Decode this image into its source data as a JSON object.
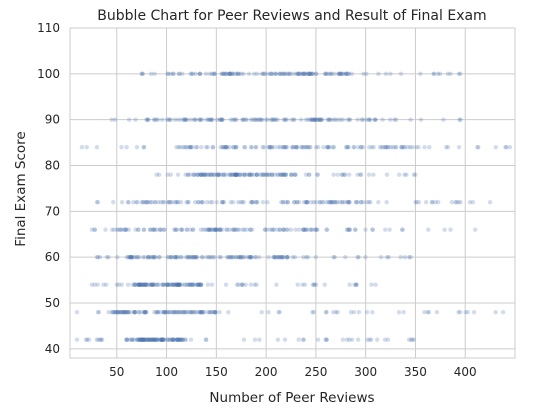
{
  "chart_data": {
    "type": "scatter",
    "title": "Bubble Chart for Peer Reviews and Result of Final Exam",
    "xlabel": "Number of Peer Reviews",
    "ylabel": "Final Exam Score",
    "xlim": [
      3,
      450
    ],
    "ylim": [
      38,
      110
    ],
    "xticks": [
      "50",
      "100",
      "150",
      "200",
      "250",
      "300",
      "350",
      "400"
    ],
    "xtick_values": [
      50,
      100,
      150,
      200,
      250,
      300,
      350,
      400
    ],
    "yticks": [
      "40",
      "50",
      "60",
      "70",
      "80",
      "90",
      "100",
      "110"
    ],
    "ytick_values": [
      40,
      50,
      60,
      70,
      80,
      90,
      100,
      110
    ],
    "grid": true,
    "marker_color": "#4c72b0",
    "marker_opacity": 0.25,
    "score_rows": [
      {
        "y": 42,
        "x_range": [
          10,
          348
        ],
        "dense_range": [
          60,
          120
        ]
      },
      {
        "y": 48,
        "x_range": [
          10,
          438
        ],
        "dense_range": [
          45,
          150
        ]
      },
      {
        "y": 54,
        "x_range": [
          25,
          310
        ],
        "dense_range": [
          65,
          135
        ]
      },
      {
        "y": 60,
        "x_range": [
          30,
          345
        ],
        "dense_range": [
          60,
          230
        ]
      },
      {
        "y": 66,
        "x_range": [
          25,
          410
        ],
        "dense_range": [
          45,
          300
        ]
      },
      {
        "y": 72,
        "x_range": [
          30,
          425
        ],
        "dense_range": [
          55,
          320
        ]
      },
      {
        "y": 78,
        "x_range": [
          90,
          350
        ],
        "dense_range": [
          120,
          230
        ]
      },
      {
        "y": 84,
        "x_range": [
          15,
          445
        ],
        "dense_range": [
          110,
          340
        ]
      },
      {
        "y": 90,
        "x_range": [
          45,
          395
        ],
        "dense_range": [
          80,
          310
        ]
      },
      {
        "y": 100,
        "x_range": [
          75,
          395
        ],
        "dense_range": [
          100,
          290
        ]
      }
    ]
  }
}
